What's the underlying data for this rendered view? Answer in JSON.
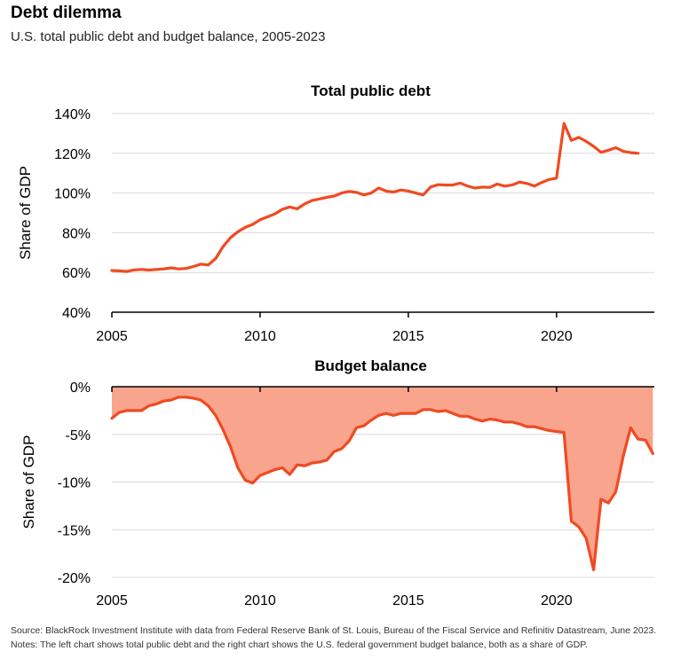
{
  "header": {
    "title": "Debt dilemma",
    "subtitle": "U.S. total public debt and budget balance, 2005-2023"
  },
  "footer": {
    "source": "Source: BlackRock Investment Institute with data from Federal Reserve Bank of St. Louis, Bureau of the Fiscal Service and Refinitiv Datastream, June 2023. Notes: The left chart shows total public debt and the right chart shows the U.S. federal government budget balance, both as a share of GDP."
  },
  "colors": {
    "line": "#f04a22",
    "area": "#f9a48c",
    "grid": "#d9d9d9",
    "axis": "#000000"
  },
  "chart_data": [
    {
      "type": "line",
      "title": "Total public debt",
      "ylabel": "Share of GDP",
      "ylim": [
        40,
        140
      ],
      "yticks": [
        40,
        60,
        80,
        100,
        120,
        140
      ],
      "ytick_labels": [
        "40%",
        "60%",
        "80%",
        "100%",
        "120%",
        "140%"
      ],
      "xlim": [
        2005,
        2023.3
      ],
      "xticks": [
        2005,
        2010,
        2015,
        2020
      ],
      "xtick_labels": [
        "2005",
        "2010",
        "2015",
        "2020"
      ],
      "grid": true,
      "series": [
        {
          "x": [
            2005.0,
            2005.25,
            2005.5,
            2005.75,
            2006.0,
            2006.25,
            2006.5,
            2006.75,
            2007.0,
            2007.25,
            2007.5,
            2007.75,
            2008.0,
            2008.25,
            2008.5,
            2008.75,
            2009.0,
            2009.25,
            2009.5,
            2009.75,
            2010.0,
            2010.25,
            2010.5,
            2010.75,
            2011.0,
            2011.25,
            2011.5,
            2011.75,
            2012.0,
            2012.25,
            2012.5,
            2012.75,
            2013.0,
            2013.25,
            2013.5,
            2013.75,
            2014.0,
            2014.25,
            2014.5,
            2014.75,
            2015.0,
            2015.25,
            2015.5,
            2015.75,
            2016.0,
            2016.25,
            2016.5,
            2016.75,
            2017.0,
            2017.25,
            2017.5,
            2017.75,
            2018.0,
            2018.25,
            2018.5,
            2018.75,
            2019.0,
            2019.25,
            2019.5,
            2019.75,
            2020.0,
            2020.25,
            2020.5,
            2020.75,
            2021.0,
            2021.25,
            2021.5,
            2021.75,
            2022.0,
            2022.25,
            2022.5,
            2022.75
          ],
          "values": [
            61,
            60.8,
            60.5,
            61.3,
            61.5,
            61.2,
            61.5,
            61.8,
            62.3,
            61.8,
            62,
            63,
            64.2,
            63.8,
            67,
            73,
            77.5,
            80.5,
            82.7,
            84.2,
            86.5,
            88,
            89.5,
            91.8,
            93,
            92,
            94.5,
            96.2,
            97,
            97.8,
            98.5,
            100,
            100.8,
            100.3,
            99,
            100,
            102.5,
            101,
            100.5,
            101.5,
            101,
            100,
            99,
            103,
            104.2,
            104,
            104,
            105,
            103.5,
            102.5,
            103,
            102.8,
            104.5,
            103.5,
            104,
            105.5,
            104.8,
            103.5,
            105.3,
            106.8,
            107.5,
            135,
            126.5,
            128,
            126,
            123.5,
            120.5,
            121.5,
            122.8,
            121,
            120.3,
            120
          ]
        }
      ]
    },
    {
      "type": "area",
      "title": "Budget balance",
      "ylabel": "Share of GDP",
      "ylim": [
        -20,
        0
      ],
      "yticks": [
        -20,
        -15,
        -10,
        -5,
        0
      ],
      "ytick_labels": [
        "-20%",
        "-15%",
        "-10%",
        "-5%",
        "0%"
      ],
      "xlim": [
        2005,
        2023.3
      ],
      "xticks": [
        2005,
        2010,
        2015,
        2020
      ],
      "xtick_labels": [
        "2005",
        "2010",
        "2015",
        "2020"
      ],
      "grid": true,
      "series": [
        {
          "x": [
            2005.0,
            2005.25,
            2005.5,
            2005.75,
            2006.0,
            2006.25,
            2006.5,
            2006.75,
            2007.0,
            2007.25,
            2007.5,
            2007.75,
            2008.0,
            2008.25,
            2008.5,
            2008.75,
            2009.0,
            2009.25,
            2009.5,
            2009.75,
            2010.0,
            2010.25,
            2010.5,
            2010.75,
            2011.0,
            2011.25,
            2011.5,
            2011.75,
            2012.0,
            2012.25,
            2012.5,
            2012.75,
            2013.0,
            2013.25,
            2013.5,
            2013.75,
            2014.0,
            2014.25,
            2014.5,
            2014.75,
            2015.0,
            2015.25,
            2015.5,
            2015.75,
            2016.0,
            2016.25,
            2016.5,
            2016.75,
            2017.0,
            2017.25,
            2017.5,
            2017.75,
            2018.0,
            2018.25,
            2018.5,
            2018.75,
            2019.0,
            2019.25,
            2019.5,
            2019.75,
            2020.0,
            2020.25,
            2020.5,
            2020.75,
            2021.0,
            2021.25,
            2021.5,
            2021.75,
            2022.0,
            2022.25,
            2022.5,
            2022.75,
            2023.0,
            2023.25
          ],
          "values": [
            -3.3,
            -2.7,
            -2.5,
            -2.5,
            -2.5,
            -2,
            -1.8,
            -1.5,
            -1.4,
            -1.1,
            -1.1,
            -1.2,
            -1.4,
            -2,
            -3,
            -4.5,
            -6.3,
            -8.5,
            -9.8,
            -10.1,
            -9.3,
            -9,
            -8.7,
            -8.5,
            -9.2,
            -8.2,
            -8.3,
            -8,
            -7.9,
            -7.7,
            -6.8,
            -6.5,
            -5.7,
            -4.3,
            -4.1,
            -3.5,
            -3,
            -2.8,
            -3,
            -2.8,
            -2.8,
            -2.8,
            -2.4,
            -2.4,
            -2.6,
            -2.5,
            -2.8,
            -3.1,
            -3.1,
            -3.4,
            -3.6,
            -3.4,
            -3.5,
            -3.7,
            -3.7,
            -3.9,
            -4.2,
            -4.2,
            -4.4,
            -4.6,
            -4.7,
            -4.8,
            -14.1,
            -14.7,
            -15.9,
            -19.2,
            -11.8,
            -12.2,
            -11,
            -7.3,
            -4.3,
            -5.5,
            -5.6,
            -7
          ]
        }
      ]
    }
  ]
}
